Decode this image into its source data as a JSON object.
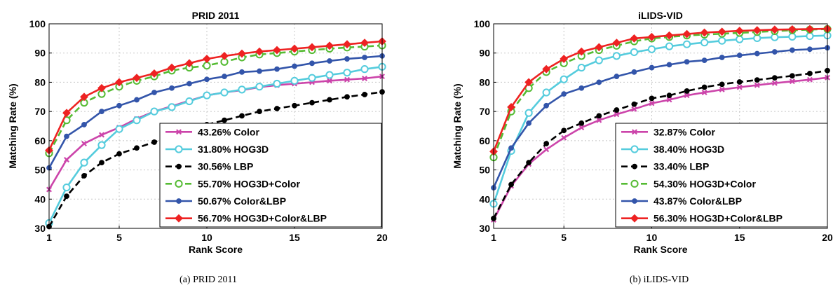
{
  "captions": [
    "(a)  PRID 2011",
    "(b)  iLIDS-VID"
  ],
  "chart_data": [
    {
      "type": "line",
      "title": "PRID 2011",
      "xlabel": "Rank Score",
      "ylabel": "Matching Rate (%)",
      "xlim": [
        1,
        20
      ],
      "ylim": [
        30,
        100
      ],
      "xticks": [
        1,
        5,
        10,
        15,
        20
      ],
      "yticks": [
        30,
        40,
        50,
        60,
        70,
        80,
        90,
        100
      ],
      "grid": true,
      "legend_position": "lower-right",
      "x": [
        1,
        2,
        3,
        4,
        5,
        6,
        7,
        8,
        9,
        10,
        11,
        12,
        13,
        14,
        15,
        16,
        17,
        18,
        19,
        20
      ],
      "series": [
        {
          "name": "43.26% Color",
          "color": "#cc44aa",
          "marker": "x",
          "dash": false,
          "values": [
            43.3,
            53.5,
            59,
            62,
            64.5,
            67.5,
            70,
            71.8,
            73.7,
            75.5,
            76.5,
            77.3,
            78.3,
            79,
            79.5,
            80,
            80.5,
            80.9,
            81.3,
            82
          ]
        },
        {
          "name": "31.80% HOG3D",
          "color": "#55ccdd",
          "marker": "o",
          "dash": false,
          "values": [
            31.8,
            44,
            52.5,
            58.5,
            64,
            67,
            70,
            71.5,
            73.5,
            75.5,
            76.5,
            77.5,
            78.5,
            79.5,
            80.5,
            81.5,
            82.5,
            83.3,
            84.5,
            85.3
          ]
        },
        {
          "name": "30.56% LBP",
          "color": "#000000",
          "marker": "dot",
          "dash": true,
          "values": [
            30.6,
            41,
            48,
            52.5,
            55.5,
            57.5,
            59.5,
            61.5,
            63.5,
            65.5,
            67,
            68.5,
            70,
            71,
            72,
            73,
            74,
            75,
            75.8,
            76.7
          ]
        },
        {
          "name": "55.70% HOG3D+Color",
          "color": "#55bb33",
          "marker": "o",
          "dash": true,
          "values": [
            55.7,
            67,
            73,
            76,
            78.5,
            80.5,
            82,
            84,
            85,
            85.7,
            87,
            88.5,
            89.5,
            90,
            90.5,
            91,
            91.5,
            91.9,
            92.2,
            92.6
          ]
        },
        {
          "name": "50.67% Color&LBP",
          "color": "#3355aa",
          "marker": "dot",
          "dash": false,
          "values": [
            50.7,
            61.5,
            65.5,
            70,
            72,
            74,
            76.5,
            78,
            79.5,
            81,
            82,
            83.5,
            83.8,
            84.5,
            85.5,
            86.5,
            87.3,
            88,
            88.5,
            89
          ]
        },
        {
          "name": "56.70% HOG3D+Color&LBP",
          "color": "#ee2222",
          "marker": "diamond",
          "dash": false,
          "values": [
            56.7,
            69.5,
            75,
            78,
            80,
            81.5,
            83,
            85,
            86.5,
            88,
            89,
            89.8,
            90.5,
            91,
            91.5,
            92,
            92.5,
            93,
            93.5,
            94
          ]
        }
      ]
    },
    {
      "type": "line",
      "title": "iLIDS-VID",
      "xlabel": "Rank Score",
      "ylabel": "Matching Rate (%)",
      "xlim": [
        1,
        20
      ],
      "ylim": [
        30,
        100
      ],
      "xticks": [
        1,
        5,
        10,
        15,
        20
      ],
      "yticks": [
        30,
        40,
        50,
        60,
        70,
        80,
        90,
        100
      ],
      "grid": true,
      "legend_position": "lower-right",
      "x": [
        1,
        2,
        3,
        4,
        5,
        6,
        7,
        8,
        9,
        10,
        11,
        12,
        13,
        14,
        15,
        16,
        17,
        18,
        19,
        20
      ],
      "series": [
        {
          "name": "32.87% Color",
          "color": "#cc44aa",
          "marker": "x",
          "dash": false,
          "values": [
            32.9,
            44.5,
            52,
            57,
            61,
            64.5,
            67,
            69,
            70.8,
            72.8,
            74,
            75.5,
            76.5,
            77.5,
            78.3,
            79,
            79.7,
            80.3,
            80.9,
            81.6
          ]
        },
        {
          "name": "38.40% HOG3D",
          "color": "#55ccdd",
          "marker": "o",
          "dash": false,
          "values": [
            38.4,
            56.5,
            69.5,
            76.5,
            81,
            85,
            87.5,
            89,
            90.3,
            91.3,
            92.3,
            93,
            93.6,
            94.2,
            94.7,
            95.1,
            95.4,
            95.6,
            95.8,
            96
          ]
        },
        {
          "name": "33.40% LBP",
          "color": "#000000",
          "marker": "dot",
          "dash": true,
          "values": [
            33.4,
            45,
            52.5,
            59,
            63.5,
            66,
            68.5,
            70.5,
            72.5,
            74.5,
            75.5,
            77,
            78.3,
            79.3,
            80.1,
            80.8,
            81.5,
            82.2,
            83,
            84
          ]
        },
        {
          "name": "54.30% HOG3D+Color",
          "color": "#55bb33",
          "marker": "o",
          "dash": true,
          "values": [
            54.3,
            70,
            78,
            83.5,
            86.5,
            89,
            91,
            92.5,
            94,
            95,
            95.5,
            96,
            96.3,
            96.6,
            96.9,
            97.2,
            97.5,
            97.8,
            98,
            98.2
          ]
        },
        {
          "name": "43.87% Color&LBP",
          "color": "#3355aa",
          "marker": "dot",
          "dash": false,
          "values": [
            43.9,
            57.5,
            66,
            72,
            76,
            78,
            80,
            82,
            83.5,
            85,
            86,
            87,
            87.5,
            88.5,
            89.2,
            89.8,
            90.4,
            91,
            91.3,
            91.8
          ]
        },
        {
          "name": "56.30% HOG3D+Color&LBP",
          "color": "#ee2222",
          "marker": "diamond",
          "dash": false,
          "values": [
            56.3,
            71.5,
            80,
            84.5,
            88,
            90.5,
            92,
            93.5,
            95,
            95.5,
            96,
            96.5,
            97,
            97.3,
            97.6,
            97.8,
            98,
            98.1,
            98.2,
            98.3
          ]
        }
      ]
    }
  ]
}
